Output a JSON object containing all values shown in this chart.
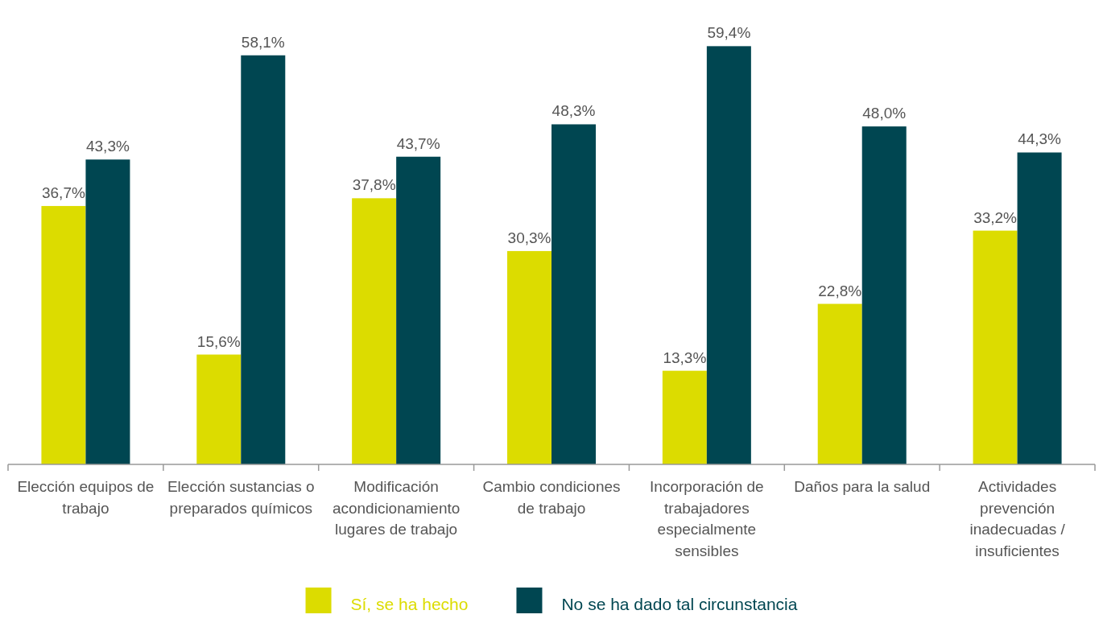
{
  "chart_data": {
    "type": "bar",
    "categories": [
      "Elección equipos de trabajo",
      "Elección sustancias o preparados químicos",
      "Modificación acondicionamiento lugares de trabajo",
      "Cambio condiciones de trabajo",
      "Incorporación de trabajadores especialmente sensibles",
      "Daños para la salud",
      "Actividades prevención inadecuadas / insuficientes"
    ],
    "series": [
      {
        "name": "Sí, se ha hecho",
        "color": "#dcdc00",
        "values": [
          36.7,
          15.6,
          37.8,
          30.3,
          13.3,
          22.8,
          33.2
        ],
        "value_labels": [
          "36,7%",
          "15,6%",
          "37,8%",
          "30,3%",
          "13,3%",
          "22,8%",
          "33,2%"
        ]
      },
      {
        "name": "No se ha dado tal circunstancia",
        "color": "#004651",
        "values": [
          43.3,
          58.1,
          43.7,
          48.3,
          59.4,
          48.0,
          44.3
        ],
        "value_labels": [
          "43,3%",
          "58,1%",
          "43,7%",
          "48,3%",
          "59,4%",
          "48,0%",
          "44,3%"
        ]
      }
    ],
    "legend": "bottom",
    "grid": false
  }
}
